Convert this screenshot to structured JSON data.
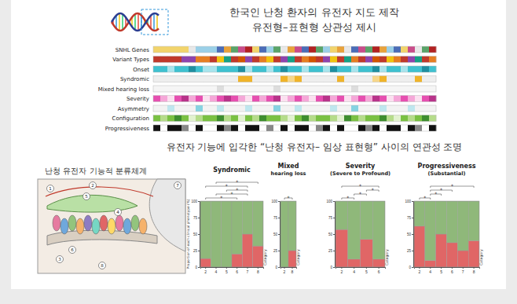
{
  "header": {
    "lines": [
      "한국인 난청 환자의 유전자 지도 제작",
      "유전형–표현형 상관성 제시"
    ]
  },
  "heatmap": {
    "rows": [
      {
        "label": "SNHL Genes",
        "palette": [
          "#f2d46b",
          "#e9a23b",
          "#5aa469",
          "#4b6cb7",
          "#c94c8a",
          "#e8e8e8",
          "#9ad0e8",
          "#b22222"
        ],
        "cells": [
          0,
          0,
          0,
          0,
          0,
          5,
          6,
          6,
          6,
          3,
          1,
          2,
          4,
          7,
          0,
          3,
          6,
          2,
          5,
          1,
          4,
          3,
          7,
          2,
          6,
          0,
          1,
          5,
          3,
          4,
          2,
          7,
          1,
          6,
          3,
          0,
          4,
          5,
          2,
          7
        ]
      },
      {
        "label": "Variant Types",
        "palette": [
          "#c0392b",
          "#8e44ad",
          "#e67e22",
          "#f1c40f",
          "#16a085",
          "#d35400"
        ],
        "cells": [
          0,
          0,
          0,
          0,
          1,
          1,
          2,
          2,
          0,
          3,
          4,
          0,
          5,
          1,
          0,
          2,
          3,
          0,
          1,
          4,
          0,
          2,
          5,
          0,
          1,
          3,
          0,
          4,
          2,
          0,
          1,
          5,
          0,
          3,
          2,
          0,
          1,
          4,
          0,
          2
        ]
      },
      {
        "label": "Onset",
        "palette": [
          "#3fc1d0",
          "#a8e4ec",
          "#1f8fa0"
        ],
        "cells": [
          0,
          0,
          1,
          0,
          0,
          2,
          0,
          1,
          1,
          0,
          0,
          0,
          2,
          1,
          0,
          0,
          1,
          0,
          2,
          0,
          0,
          1,
          0,
          0,
          1,
          2,
          0,
          0,
          1,
          0,
          0,
          2,
          1,
          0,
          0,
          1,
          0,
          0,
          2,
          0
        ]
      },
      {
        "label": "Syndromic",
        "palette": [
          "#eeeeee",
          "#f0b429",
          "#f7d78a"
        ],
        "cells": [
          0,
          0,
          0,
          0,
          0,
          0,
          0,
          0,
          0,
          0,
          0,
          0,
          1,
          1,
          0,
          0,
          0,
          0,
          1,
          2,
          1,
          0,
          0,
          0,
          0,
          0,
          1,
          0,
          0,
          0,
          0,
          2,
          1,
          0,
          0,
          0,
          0,
          1,
          0,
          0
        ]
      },
      {
        "label": "Mixed hearing loss",
        "palette": [
          "#f5f5f5",
          "#dddddd"
        ],
        "cells": [
          0,
          0,
          0,
          0,
          0,
          0,
          0,
          0,
          0,
          1,
          0,
          0,
          0,
          0,
          0,
          0,
          0,
          1,
          0,
          0,
          0,
          0,
          0,
          0,
          0,
          0,
          0,
          0,
          1,
          0,
          0,
          0,
          0,
          0,
          0,
          0,
          0,
          0,
          0,
          0
        ]
      },
      {
        "label": "Severity",
        "palette": [
          "#e64fb0",
          "#f5a7d8",
          "#fbe0f0",
          "#b8338a"
        ],
        "cells": [
          0,
          1,
          2,
          0,
          3,
          1,
          0,
          2,
          1,
          0,
          3,
          0,
          1,
          2,
          0,
          1,
          0,
          3,
          2,
          1,
          0,
          1,
          2,
          0,
          3,
          1,
          0,
          2,
          1,
          0,
          1,
          3,
          0,
          2,
          1,
          0,
          1,
          2,
          0,
          3
        ]
      },
      {
        "label": "Asymmetry",
        "palette": [
          "#f3f3f3",
          "#bfe7ef",
          "#86d3e2"
        ],
        "cells": [
          0,
          0,
          1,
          0,
          0,
          0,
          2,
          0,
          0,
          1,
          0,
          0,
          0,
          1,
          0,
          0,
          0,
          2,
          0,
          0,
          1,
          0,
          0,
          0,
          0,
          1,
          0,
          0,
          2,
          0,
          0,
          0,
          1,
          0,
          0,
          0,
          1,
          0,
          0,
          0
        ]
      },
      {
        "label": "Configuration",
        "palette": [
          "#7ac143",
          "#b5dc8a",
          "#3e8e2f",
          "#e2f2cf"
        ],
        "cells": [
          0,
          1,
          0,
          2,
          0,
          3,
          1,
          0,
          0,
          2,
          1,
          0,
          3,
          0,
          1,
          2,
          0,
          0,
          1,
          3,
          0,
          2,
          1,
          0,
          0,
          1,
          3,
          2,
          0,
          1,
          0,
          0,
          2,
          1,
          3,
          0,
          1,
          0,
          2,
          1
        ]
      },
      {
        "label": "Progressiveness",
        "palette": [
          "#111111",
          "#ffffff",
          "#888888"
        ],
        "cells": [
          0,
          1,
          0,
          0,
          2,
          1,
          0,
          1,
          1,
          0,
          2,
          0,
          1,
          0,
          0,
          1,
          2,
          1,
          0,
          1,
          0,
          0,
          1,
          2,
          0,
          1,
          0,
          1,
          1,
          0,
          2,
          0,
          1,
          0,
          0,
          1,
          0,
          2,
          1,
          0
        ]
      }
    ]
  },
  "subtitle": "유전자 기능에 입각한 “난청 유전자– 임상 표현형” 사이의 연관성 조명",
  "diagram": {
    "title": "난청 유전자 기능적 분류체계",
    "markers": [
      "1",
      "2",
      "3",
      "4",
      "5",
      "6",
      "7",
      "8"
    ]
  },
  "chart_data": [
    {
      "type": "bar",
      "stacked": true,
      "title": [
        "Syndromic"
      ],
      "categories": [
        "2",
        "4",
        "5",
        "6",
        "7",
        "8"
      ],
      "series": [
        {
          "color": "#e06666",
          "values": [
            13,
            0,
            0,
            20,
            50,
            32
          ]
        },
        {
          "color": "#8fb87a",
          "values": [
            87,
            100,
            100,
            80,
            50,
            68
          ]
        }
      ],
      "ylim": [
        0,
        100
      ],
      "yticks": [
        0,
        25,
        50,
        75,
        100
      ],
      "y_label": "Proportion of each clinical phenotype (%)",
      "x_label": "Category",
      "annotations": [
        {
          "from": "2",
          "to": "6",
          "text": "*"
        },
        {
          "from": "4",
          "to": "7",
          "text": "*"
        },
        {
          "from": "5",
          "to": "7",
          "text": "*"
        },
        {
          "from": "2",
          "to": "7",
          "text": "*"
        },
        {
          "from": "4",
          "to": "8",
          "text": "*"
        }
      ]
    },
    {
      "type": "bar",
      "stacked": true,
      "title": [
        "Mixed",
        "hearing loss"
      ],
      "categories": [
        "2",
        "8"
      ],
      "series": [
        {
          "color": "#e06666",
          "values": [
            0,
            25
          ]
        },
        {
          "color": "#8fb87a",
          "values": [
            100,
            75
          ]
        }
      ],
      "ylim": [
        0,
        100
      ],
      "yticks": [
        0,
        25,
        50,
        75,
        100
      ],
      "x_label": "Category",
      "annotations": [
        {
          "from": "2",
          "to": "8",
          "text": "*"
        }
      ]
    },
    {
      "type": "bar",
      "stacked": true,
      "title": [
        "Severity",
        "(Severe to Profound)"
      ],
      "categories": [
        "2",
        "4",
        "5",
        "6"
      ],
      "series": [
        {
          "color": "#e06666",
          "values": [
            57,
            12,
            42,
            12
          ]
        },
        {
          "color": "#8fb87a",
          "values": [
            43,
            88,
            58,
            88
          ]
        }
      ],
      "ylim": [
        0,
        100
      ],
      "yticks": [
        0,
        25,
        50,
        75,
        100
      ],
      "x_label": "Category",
      "annotations": [
        {
          "from": "2",
          "to": "4",
          "text": "*"
        },
        {
          "from": "4",
          "to": "5",
          "text": "*"
        },
        {
          "from": "5",
          "to": "6",
          "text": "*"
        },
        {
          "from": "2",
          "to": "6",
          "text": "*"
        }
      ]
    },
    {
      "type": "bar",
      "stacked": true,
      "title": [
        "Progressiveness",
        "(Substantial)"
      ],
      "categories": [
        "2",
        "4",
        "5",
        "6",
        "7",
        "8"
      ],
      "series": [
        {
          "color": "#e06666",
          "values": [
            62,
            10,
            50,
            37,
            25,
            40
          ]
        },
        {
          "color": "#8fb87a",
          "values": [
            38,
            90,
            50,
            63,
            75,
            60
          ]
        }
      ],
      "ylim": [
        0,
        100
      ],
      "yticks": [
        0,
        25,
        50,
        75,
        100
      ],
      "x_label": "Category",
      "annotations": [
        {
          "from": "2",
          "to": "4",
          "text": "*"
        },
        {
          "from": "4",
          "to": "5",
          "text": "*"
        },
        {
          "from": "4",
          "to": "6",
          "text": "*"
        },
        {
          "from": "4",
          "to": "8",
          "text": "*"
        }
      ]
    }
  ]
}
